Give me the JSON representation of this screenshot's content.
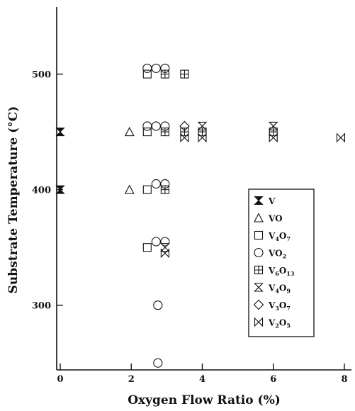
{
  "chart_data": {
    "type": "scatter",
    "xlabel": "Oxygen Flow Ratio (%)",
    "ylabel": "Substrate Temperature (°C)",
    "xlim": [
      -0.1,
      8.2
    ],
    "ylim": [
      244,
      558
    ],
    "x_ticks": [
      0,
      2,
      4,
      6,
      8
    ],
    "y_ticks": [
      300,
      400,
      500
    ],
    "grid": false,
    "legend_position": "right-middle",
    "series": [
      {
        "name": "V",
        "marker": "hourglass",
        "legend_parts": [
          {
            "t": "V"
          }
        ],
        "points": [
          [
            0,
            450
          ],
          [
            0,
            400
          ]
        ]
      },
      {
        "name": "VO",
        "marker": "triangle",
        "legend_parts": [
          {
            "t": "VO"
          }
        ],
        "points": [
          [
            1.95,
            450
          ],
          [
            1.95,
            400
          ]
        ]
      },
      {
        "name": "V4O7",
        "marker": "square",
        "legend_parts": [
          {
            "t": "V"
          },
          {
            "t": "4",
            "sub": true
          },
          {
            "t": "O"
          },
          {
            "t": "7",
            "sub": true
          }
        ],
        "points": [
          [
            2.45,
            500
          ],
          [
            2.45,
            450
          ],
          [
            2.45,
            400
          ],
          [
            2.45,
            350
          ]
        ]
      },
      {
        "name": "VO2",
        "marker": "circle",
        "legend_parts": [
          {
            "t": "VO"
          },
          {
            "t": "2",
            "sub": true
          }
        ],
        "points": [
          [
            2.45,
            505
          ],
          [
            2.7,
            505
          ],
          [
            2.95,
            505
          ],
          [
            2.45,
            455
          ],
          [
            2.7,
            455
          ],
          [
            2.95,
            455
          ],
          [
            2.7,
            405
          ],
          [
            2.95,
            405
          ],
          [
            2.7,
            355
          ],
          [
            2.95,
            355
          ],
          [
            2.75,
            300
          ],
          [
            2.75,
            250
          ]
        ]
      },
      {
        "name": "V6O13",
        "marker": "square-plus",
        "legend_parts": [
          {
            "t": "V"
          },
          {
            "t": "6",
            "sub": true
          },
          {
            "t": "O"
          },
          {
            "t": "13",
            "sub": true
          }
        ],
        "points": [
          [
            2.95,
            500
          ],
          [
            3.5,
            500
          ],
          [
            2.95,
            450
          ],
          [
            3.5,
            450
          ],
          [
            4.0,
            450
          ],
          [
            6.0,
            450
          ],
          [
            2.95,
            400
          ]
        ]
      },
      {
        "name": "V4O9",
        "marker": "x-box",
        "legend_parts": [
          {
            "t": "V"
          },
          {
            "t": "4",
            "sub": true
          },
          {
            "t": "O"
          },
          {
            "t": "9",
            "sub": true
          }
        ],
        "points": [
          [
            4.0,
            455
          ],
          [
            6.0,
            455
          ],
          [
            2.95,
            350
          ]
        ]
      },
      {
        "name": "V3O7",
        "marker": "diamond",
        "legend_parts": [
          {
            "t": "V"
          },
          {
            "t": "3",
            "sub": true
          },
          {
            "t": "O"
          },
          {
            "t": "7",
            "sub": true
          }
        ],
        "points": [
          [
            3.5,
            455
          ]
        ]
      },
      {
        "name": "V2O5",
        "marker": "bowtie",
        "legend_parts": [
          {
            "t": "V"
          },
          {
            "t": "2",
            "sub": true
          },
          {
            "t": "O"
          },
          {
            "t": "5",
            "sub": true
          }
        ],
        "points": [
          [
            3.5,
            445
          ],
          [
            4.0,
            445
          ],
          [
            6.0,
            445
          ],
          [
            7.9,
            445
          ],
          [
            2.95,
            345
          ]
        ]
      }
    ]
  }
}
